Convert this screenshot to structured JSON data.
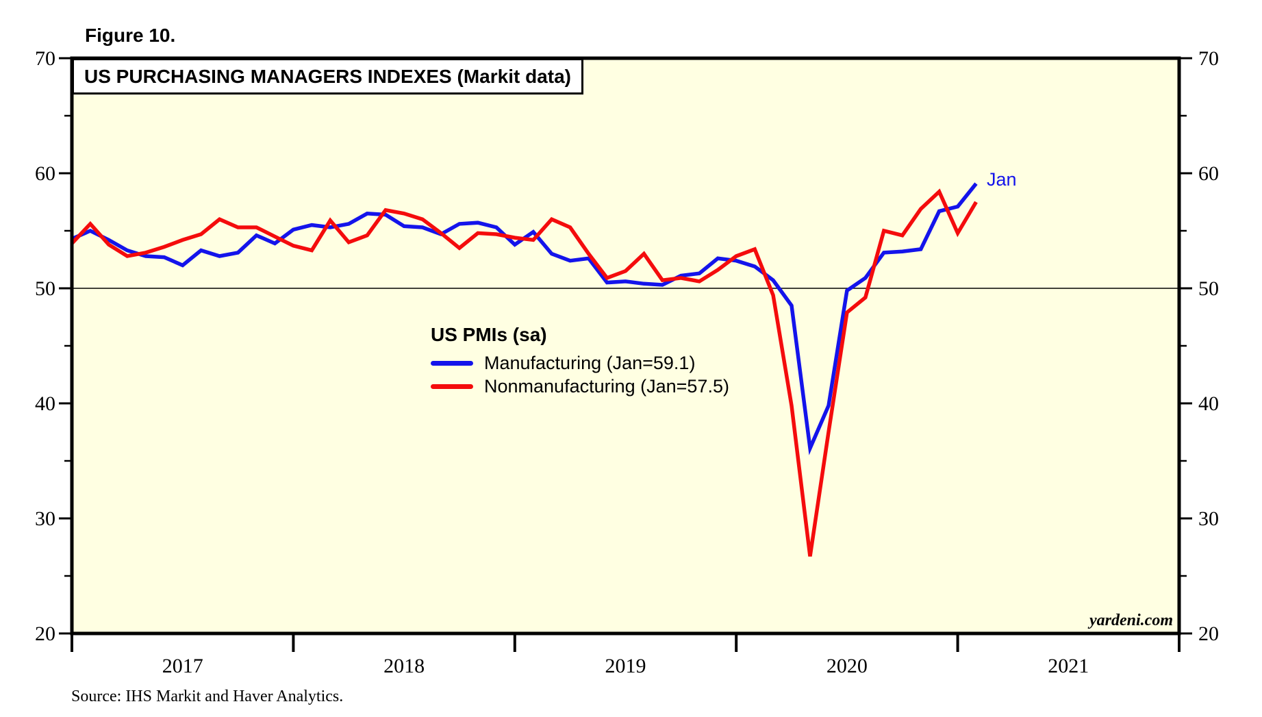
{
  "figure": {
    "label": "Figure 10."
  },
  "title": "US PURCHASING MANAGERS INDEXES (Markit data)",
  "legend": {
    "title": "US PMIs (sa)",
    "items": [
      {
        "label": "Manufacturing (Jan=59.1)"
      },
      {
        "label": "Nonmanufacturing (Jan=57.5)"
      }
    ]
  },
  "annotation": {
    "label": "Jan"
  },
  "watermark": "yardeni.com",
  "source_note": "Source: IHS Markit and Haver Analytics.",
  "colors": {
    "page_bg": "#ffffff",
    "plot_bg": "#FFFFE2",
    "axis": "#000000",
    "manufacturing_blue": "#1414EB",
    "nonmanufacturing_red": "#F40C0C"
  },
  "chart_data": {
    "type": "line",
    "title": "US PURCHASING MANAGERS INDEXES (Markit data)",
    "xlabel": "",
    "ylabel": "",
    "ylim": [
      20,
      70
    ],
    "y_ticks": [
      20,
      30,
      40,
      50,
      60,
      70
    ],
    "y_minor_ticks": [
      25,
      35,
      45,
      55,
      65
    ],
    "x_year_labels": [
      "2017",
      "2018",
      "2019",
      "2020",
      "2021"
    ],
    "x_axis_span_years": [
      "2017-01",
      "2022-01"
    ],
    "reference_line": 50,
    "grid": "off",
    "legend_position": "center-inside",
    "x_monthly": [
      "2016-12",
      "2017-01",
      "2017-02",
      "2017-03",
      "2017-04",
      "2017-05",
      "2017-06",
      "2017-07",
      "2017-08",
      "2017-09",
      "2017-10",
      "2017-11",
      "2017-12",
      "2018-01",
      "2018-02",
      "2018-03",
      "2018-04",
      "2018-05",
      "2018-06",
      "2018-07",
      "2018-08",
      "2018-09",
      "2018-10",
      "2018-11",
      "2018-12",
      "2019-01",
      "2019-02",
      "2019-03",
      "2019-04",
      "2019-05",
      "2019-06",
      "2019-07",
      "2019-08",
      "2019-09",
      "2019-10",
      "2019-11",
      "2019-12",
      "2020-01",
      "2020-02",
      "2020-03",
      "2020-04",
      "2020-05",
      "2020-06",
      "2020-07",
      "2020-08",
      "2020-09",
      "2020-10",
      "2020-11",
      "2020-12",
      "2021-01"
    ],
    "series": [
      {
        "name": "Manufacturing",
        "color": "#1414EB",
        "last_point_label": "Jan",
        "values": [
          54.3,
          55.0,
          54.2,
          53.3,
          52.8,
          52.7,
          52.0,
          53.3,
          52.8,
          53.1,
          54.6,
          53.9,
          55.1,
          55.5,
          55.3,
          55.6,
          56.5,
          56.4,
          55.4,
          55.3,
          54.7,
          55.6,
          55.7,
          55.3,
          53.8,
          54.9,
          53.0,
          52.4,
          52.6,
          50.5,
          50.6,
          50.4,
          50.3,
          51.1,
          51.3,
          52.6,
          52.4,
          51.9,
          50.7,
          48.5,
          36.1,
          39.8,
          49.8,
          50.9,
          53.1,
          53.2,
          53.4,
          56.7,
          57.1,
          59.1
        ]
      },
      {
        "name": "Nonmanufacturing",
        "color": "#F40C0C",
        "last_point_label": "Jan",
        "values": [
          53.9,
          55.6,
          53.8,
          52.8,
          53.1,
          53.6,
          54.2,
          54.7,
          56.0,
          55.3,
          55.3,
          54.5,
          53.7,
          53.3,
          55.9,
          54.0,
          54.6,
          56.8,
          56.5,
          56.0,
          54.8,
          53.5,
          54.8,
          54.7,
          54.4,
          54.2,
          56.0,
          55.3,
          53.0,
          50.9,
          51.5,
          53.0,
          50.7,
          50.9,
          50.6,
          51.6,
          52.8,
          53.4,
          49.4,
          39.8,
          26.7,
          37.5,
          47.9,
          49.2,
          55.0,
          54.6,
          56.9,
          58.4,
          54.8,
          57.5
        ]
      }
    ]
  }
}
